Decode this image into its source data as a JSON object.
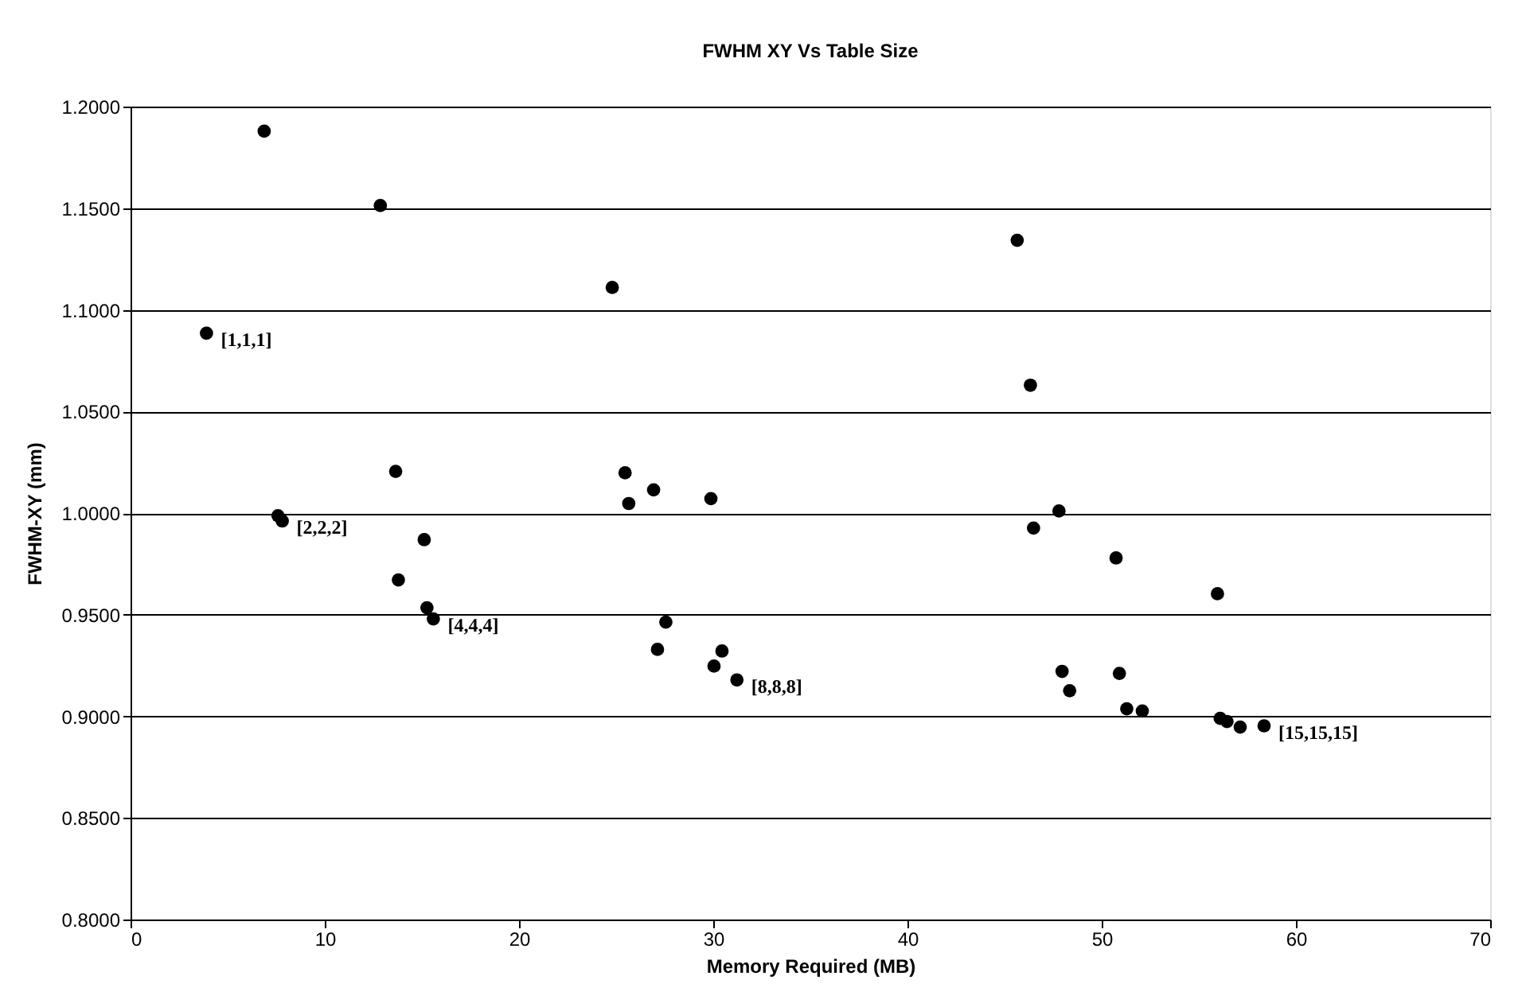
{
  "chart_data": {
    "type": "scatter",
    "title": "FWHM XY Vs Table Size",
    "xlabel": "Memory Required (MB)",
    "ylabel": "FWHM-XY (mm)",
    "x": [
      6.88,
      12.86,
      3.91,
      13.65,
      7.59,
      7.81,
      15.12,
      13.79,
      15.26,
      15.59,
      25.46,
      26.93,
      25.65,
      29.88,
      27.56,
      27.13,
      30.45,
      30.04,
      31.22,
      24.8,
      45.65,
      46.33,
      47.8,
      46.49,
      50.74,
      55.96,
      47.96,
      48.35,
      50.91,
      51.29,
      52.09,
      56.1,
      56.45,
      57.13,
      58.36
    ],
    "series": [
      {
        "color": "#000000",
        "values": [
          1.1879,
          1.1513,
          1.0885,
          1.0205,
          0.9987,
          0.9961,
          0.9869,
          0.9671,
          0.9534,
          0.9479,
          1.0198,
          1.0114,
          1.0047,
          1.0071,
          0.9463,
          0.9329,
          0.9321,
          0.9247,
          0.9179,
          1.111,
          1.1342,
          1.0629,
          1.001,
          0.9926,
          0.9779,
          0.9603,
          0.9221,
          0.9126,
          0.9211,
          0.9037,
          0.9026,
          0.899,
          0.8974,
          0.8947,
          0.8953
        ]
      }
    ],
    "marker": "circle",
    "grid": "y",
    "xlim": [
      0,
      70
    ],
    "xticks": [
      0,
      10,
      20,
      30,
      40,
      50,
      60,
      70
    ],
    "ylim": [
      0.8,
      1.2
    ],
    "yticks": [
      {
        "value": 0.8,
        "label": "0.8000"
      },
      {
        "value": 0.85,
        "label": "0.8500"
      },
      {
        "value": 0.9,
        "label": "0.9000"
      },
      {
        "value": 0.95,
        "label": "0.9500"
      },
      {
        "value": 1.0,
        "label": "1.0000"
      },
      {
        "value": 1.05,
        "label": "1.0500"
      },
      {
        "value": 1.1,
        "label": "1.1000"
      },
      {
        "value": 1.15,
        "label": "1.1500"
      },
      {
        "value": 1.2,
        "label": "1.2000"
      }
    ],
    "annotations": [
      {
        "text": "[1,1,1]",
        "x": 3.91,
        "y": 1.0885
      },
      {
        "text": "[2,2,2]",
        "x": 7.81,
        "y": 0.9961
      },
      {
        "text": "[4,4,4]",
        "x": 15.59,
        "y": 0.9479
      },
      {
        "text": "[8,8,8]",
        "x": 31.22,
        "y": 0.9179
      },
      {
        "text": "[15,15,15]",
        "x": 58.36,
        "y": 0.8953
      }
    ]
  }
}
